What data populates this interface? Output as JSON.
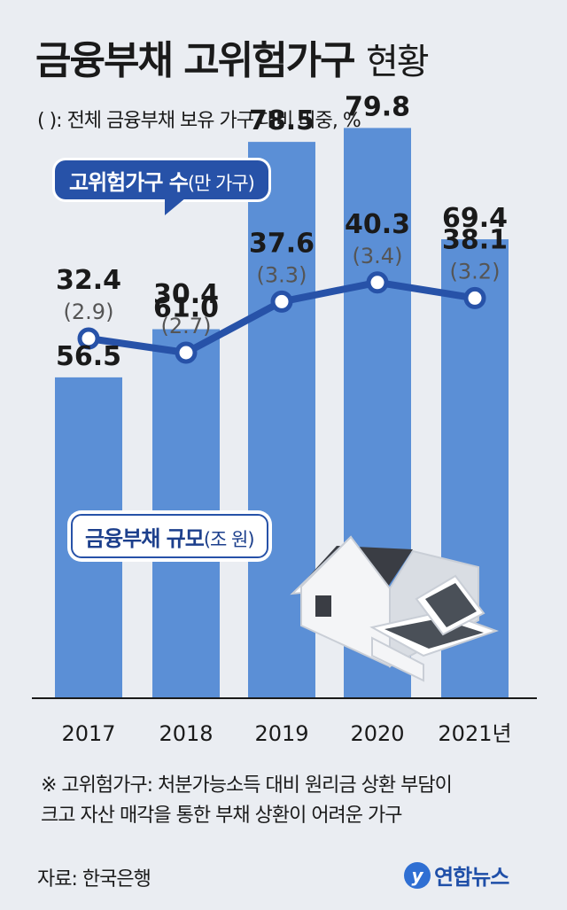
{
  "title": {
    "main": "금융부채 고위험가구",
    "sub": "현황"
  },
  "subtitle": "( ): 전체 금융부채 보유 가구 대비 비중, %",
  "count_label": {
    "main": "고위험가구 수",
    "unit": "(만 가구)"
  },
  "scale_label": {
    "main": "금융부채 규모",
    "unit": "(조 원)"
  },
  "note": [
    "※ 고위험가구: 처분가능소득 대비 원리금 상환 부담이",
    "크고 자산 매각을 통한 부채 상환이 어려운 가구"
  ],
  "source": "자료: 한국은행",
  "logo": "연합뉴스",
  "colors": {
    "bar": "#5b8fd6",
    "line": "#2752a8",
    "background": "#eaedf2"
  },
  "chart_data": {
    "type": "bar+line",
    "categories": [
      "2017",
      "2018",
      "2019",
      "2020",
      "2021년"
    ],
    "series": [
      {
        "name": "금융부채 규모(조 원)",
        "type": "bar",
        "values": [
          56.5,
          61.0,
          78.5,
          79.8,
          69.4
        ]
      },
      {
        "name": "고위험가구 수(만 가구)",
        "type": "line",
        "values": [
          32.4,
          30.4,
          37.6,
          40.3,
          38.1
        ],
        "share_percent": [
          2.9,
          2.7,
          3.3,
          3.4,
          3.2
        ]
      }
    ],
    "bar_labels": [
      "56.5",
      "61.0",
      "78.5",
      "79.8",
      "69.4"
    ],
    "line_labels": [
      "32.4",
      "30.4",
      "37.6",
      "40.3",
      "38.1"
    ],
    "share_labels": [
      "(2.9)",
      "(2.7)",
      "(3.3)",
      "(3.4)",
      "(3.2)"
    ],
    "grid": false
  }
}
